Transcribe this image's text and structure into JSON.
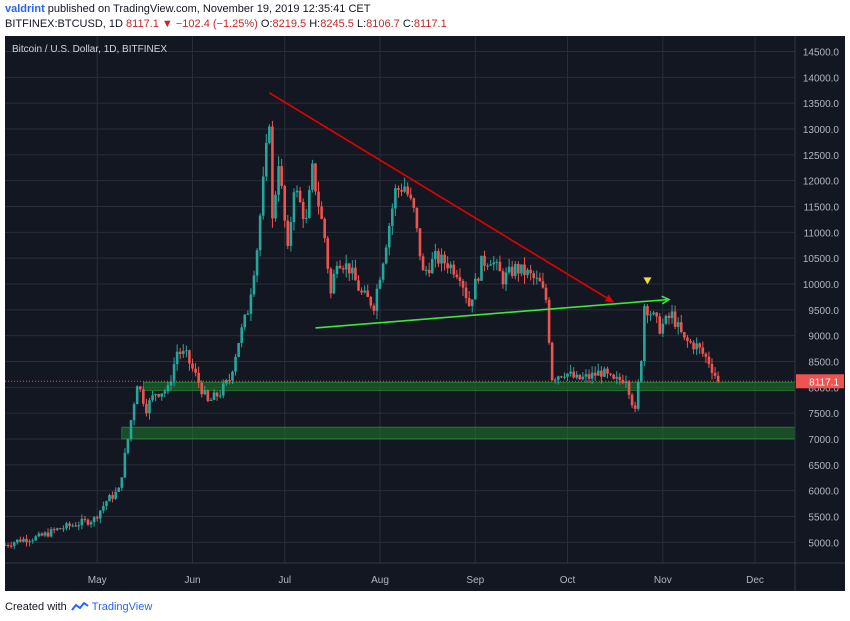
{
  "header": {
    "author": "valdrint",
    "published": "published on TradingView.com, November 19, 2019 12:35:41 CET",
    "symbol": "BITFINEX:BTCUSD, 1D",
    "last": "8117.1",
    "change": "−102.4 (−1.25%)",
    "o_label": "O:",
    "o_value": "8219.5",
    "h_label": "H:",
    "h_value": "8245.5",
    "l_label": "L:",
    "l_value": "8106.7",
    "c_label": "C:",
    "c_value": "8117.1"
  },
  "footer": {
    "created_with": "Created with",
    "brand": "TradingView"
  },
  "colors": {
    "background": "#131722",
    "grid": "#2a2e39",
    "up": "#26a69a",
    "down": "#ef5350",
    "triangle": "#e50000",
    "support": "#39e83a",
    "zone": "#1f7a2b",
    "marker": "#f5e02e",
    "price_tag": "#ef5350"
  },
  "chart_data": {
    "type": "candlestick",
    "title": "Bitcoin / U.S. Dollar, 1D, BITFINEX",
    "price_tag": "8117.1",
    "last_price": 8117.1,
    "ylim": [
      4600,
      14800
    ],
    "xlim": [
      "2019-04-01",
      "2019-12-14"
    ],
    "y_ticks": [
      "5000.0",
      "5500.0",
      "6000.0",
      "6500.0",
      "7000.0",
      "7500.0",
      "8000.0",
      "8500.0",
      "9000.0",
      "9500.0",
      "10000.0",
      "10500.0",
      "11000.0",
      "11500.0",
      "12000.0",
      "12500.0",
      "13000.0",
      "13500.0",
      "14000.0",
      "14500.0"
    ],
    "x_ticks": [
      {
        "label": "May",
        "date": "2019-05-01"
      },
      {
        "label": "Jun",
        "date": "2019-06-01"
      },
      {
        "label": "Jul",
        "date": "2019-07-01"
      },
      {
        "label": "Aug",
        "date": "2019-08-01"
      },
      {
        "label": "Sep",
        "date": "2019-09-01"
      },
      {
        "label": "Oct",
        "date": "2019-10-01"
      },
      {
        "label": "Nov",
        "date": "2019-11-01"
      },
      {
        "label": "Dec",
        "date": "2019-12-01"
      }
    ],
    "close_path": [
      [
        "2019-04-01",
        4950
      ],
      [
        "2019-04-06",
        5050
      ],
      [
        "2019-04-12",
        5100
      ],
      [
        "2019-04-18",
        5250
      ],
      [
        "2019-04-24",
        5350
      ],
      [
        "2019-04-30",
        5450
      ],
      [
        "2019-05-04",
        5800
      ],
      [
        "2019-05-08",
        6000
      ],
      [
        "2019-05-11",
        7000
      ],
      [
        "2019-05-14",
        8100
      ],
      [
        "2019-05-17",
        7600
      ],
      [
        "2019-05-20",
        7900
      ],
      [
        "2019-05-24",
        7950
      ],
      [
        "2019-05-27",
        8700
      ],
      [
        "2019-05-30",
        8600
      ],
      [
        "2019-06-03",
        8100
      ],
      [
        "2019-06-06",
        7700
      ],
      [
        "2019-06-10",
        7900
      ],
      [
        "2019-06-13",
        8150
      ],
      [
        "2019-06-16",
        8900
      ],
      [
        "2019-06-19",
        9500
      ],
      [
        "2019-06-22",
        10700
      ],
      [
        "2019-06-26",
        13200
      ],
      [
        "2019-06-27",
        11200
      ],
      [
        "2019-06-29",
        12400
      ],
      [
        "2019-07-02",
        10600
      ],
      [
        "2019-07-04",
        11900
      ],
      [
        "2019-07-08",
        11200
      ],
      [
        "2019-07-10",
        12200
      ],
      [
        "2019-07-14",
        10900
      ],
      [
        "2019-07-16",
        9800
      ],
      [
        "2019-07-18",
        10500
      ],
      [
        "2019-07-22",
        10300
      ],
      [
        "2019-07-26",
        9800
      ],
      [
        "2019-07-30",
        9600
      ],
      [
        "2019-08-02",
        10500
      ],
      [
        "2019-08-06",
        11800
      ],
      [
        "2019-08-09",
        11900
      ],
      [
        "2019-08-12",
        11400
      ],
      [
        "2019-08-15",
        10200
      ],
      [
        "2019-08-19",
        10500
      ],
      [
        "2019-08-23",
        10400
      ],
      [
        "2019-08-27",
        10200
      ],
      [
        "2019-08-30",
        9600
      ],
      [
        "2019-09-03",
        10400
      ],
      [
        "2019-09-06",
        10500
      ],
      [
        "2019-09-10",
        10100
      ],
      [
        "2019-09-14",
        10300
      ],
      [
        "2019-09-18",
        10200
      ],
      [
        "2019-09-22",
        10000
      ],
      [
        "2019-09-24",
        9700
      ],
      [
        "2019-09-26",
        8200
      ],
      [
        "2019-09-30",
        8300
      ],
      [
        "2019-10-04",
        8150
      ],
      [
        "2019-10-08",
        8200
      ],
      [
        "2019-10-12",
        8300
      ],
      [
        "2019-10-16",
        8100
      ],
      [
        "2019-10-20",
        8200
      ],
      [
        "2019-10-23",
        7500
      ],
      [
        "2019-10-25",
        8600
      ],
      [
        "2019-10-26",
        9600
      ],
      [
        "2019-10-28",
        9450
      ],
      [
        "2019-10-31",
        9150
      ],
      [
        "2019-11-04",
        9400
      ],
      [
        "2019-11-08",
        8900
      ],
      [
        "2019-11-12",
        8800
      ],
      [
        "2019-11-16",
        8500
      ],
      [
        "2019-11-19",
        8117
      ]
    ],
    "annotations": {
      "triangle_line": {
        "from": [
          "2019-06-26",
          13700
        ],
        "to": [
          "2019-10-16",
          9650
        ]
      },
      "support_line": {
        "from": [
          "2019-07-11",
          9150
        ],
        "to": [
          "2019-11-03",
          9700
        ]
      },
      "zones": [
        {
          "from": "2019-05-16",
          "to": "2019-12-14",
          "low": 7940,
          "high": 8100
        },
        {
          "from": "2019-05-09",
          "to": "2019-12-14",
          "low": 7000,
          "high": 7230
        }
      ],
      "marker": {
        "date": "2019-10-27",
        "price": 10050
      }
    }
  }
}
